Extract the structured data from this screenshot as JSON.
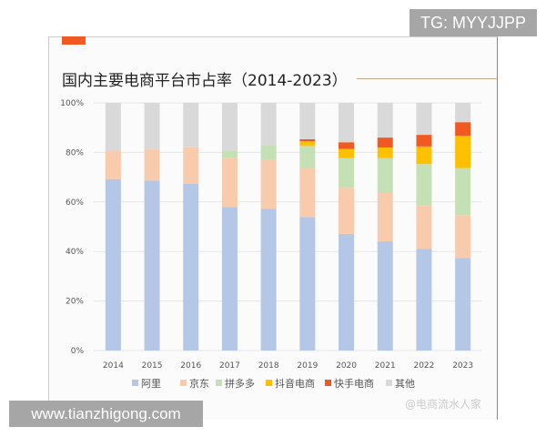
{
  "overlay": {
    "tg_label": "TG: MYYJJPP",
    "site_label": "www.tianzhigong.com"
  },
  "watermark": "@电商流水人家",
  "chart_data": {
    "type": "bar",
    "stacked": true,
    "title": "国内主要电商平台市占率（2014-2023）",
    "xlabel": "",
    "ylabel": "",
    "ylim": [
      0,
      100
    ],
    "yticks": [
      "0%",
      "20%",
      "40%",
      "60%",
      "80%",
      "100%"
    ],
    "grid": true,
    "legend_position": "bottom",
    "categories": [
      "2014",
      "2015",
      "2016",
      "2017",
      "2018",
      "2019",
      "2020",
      "2021",
      "2022",
      "2023"
    ],
    "series": [
      {
        "name": "阿里",
        "color": "#b4c7e7",
        "values": [
          69.2,
          68.6,
          67.4,
          58.0,
          57.3,
          53.9,
          47.1,
          44.1,
          41.0,
          37.3
        ]
      },
      {
        "name": "京东",
        "color": "#f8cbad",
        "values": [
          11.3,
          12.6,
          14.7,
          19.8,
          19.9,
          19.8,
          18.6,
          19.5,
          17.5,
          17.4
        ]
      },
      {
        "name": "拼多多",
        "color": "#c5e0b4",
        "values": [
          0,
          0,
          0,
          2.7,
          5.8,
          8.9,
          12.0,
          14.1,
          16.8,
          19.0
        ]
      },
      {
        "name": "抖音电商",
        "color": "#ffc000",
        "values": [
          0,
          0,
          0,
          0,
          0,
          1.9,
          3.7,
          4.3,
          7.1,
          13.0
        ]
      },
      {
        "name": "快手电商",
        "color": "#f05a22",
        "values": [
          0,
          0,
          0,
          0,
          0,
          0.8,
          2.7,
          4.0,
          4.7,
          5.5
        ]
      },
      {
        "name": "其他",
        "color": "#d9d9d9",
        "values": [
          19.5,
          18.8,
          17.9,
          19.5,
          17.0,
          14.7,
          15.9,
          14.0,
          12.9,
          7.8
        ]
      }
    ]
  }
}
